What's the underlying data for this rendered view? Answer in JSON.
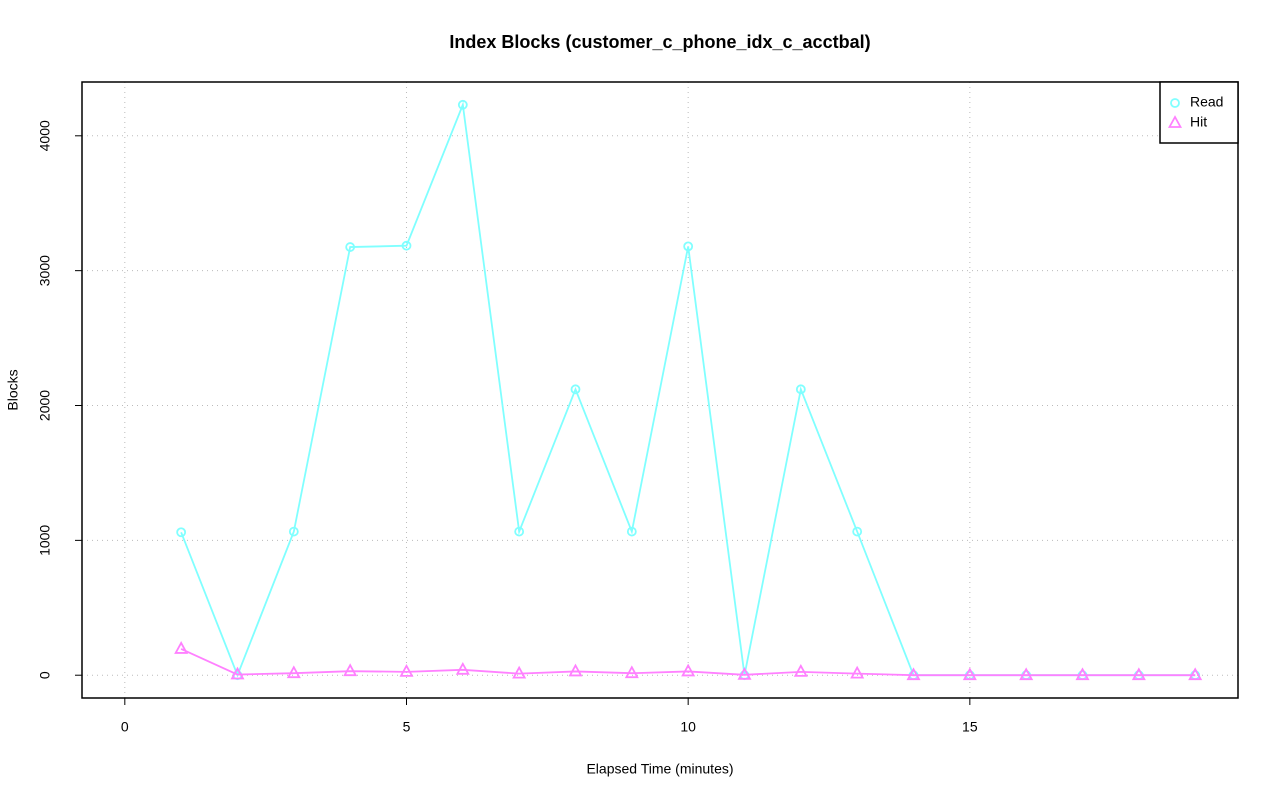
{
  "chart_data": {
    "type": "line",
    "title": "Index Blocks (customer_c_phone_idx_c_acctbal)",
    "x_label": "Elapsed Time (minutes)",
    "y_label": "Blocks",
    "x": [
      1,
      2,
      3,
      4,
      5,
      6,
      7,
      8,
      9,
      10,
      11,
      12,
      13,
      14,
      15,
      16,
      17,
      18,
      19
    ],
    "series": [
      {
        "name": "Read",
        "color": "#80ffff",
        "marker": "circle",
        "values": [
          1060,
          0,
          1065,
          3175,
          3185,
          4230,
          1065,
          2120,
          1065,
          3180,
          0,
          2120,
          1065,
          0,
          0,
          0,
          0,
          0,
          0
        ]
      },
      {
        "name": "Hit",
        "color": "#ff80ff",
        "marker": "triangle",
        "values": [
          195,
          5,
          15,
          30,
          25,
          40,
          12,
          28,
          15,
          28,
          3,
          25,
          12,
          0,
          0,
          0,
          0,
          0,
          0
        ]
      }
    ],
    "xlim": [
      -0.76,
      19.76
    ],
    "xticks": [
      0,
      5,
      10,
      15
    ],
    "ylim": [
      -169,
      4399
    ],
    "yticks": [
      0,
      1000,
      2000,
      3000,
      4000
    ],
    "grid": true,
    "legend": "top-right"
  }
}
